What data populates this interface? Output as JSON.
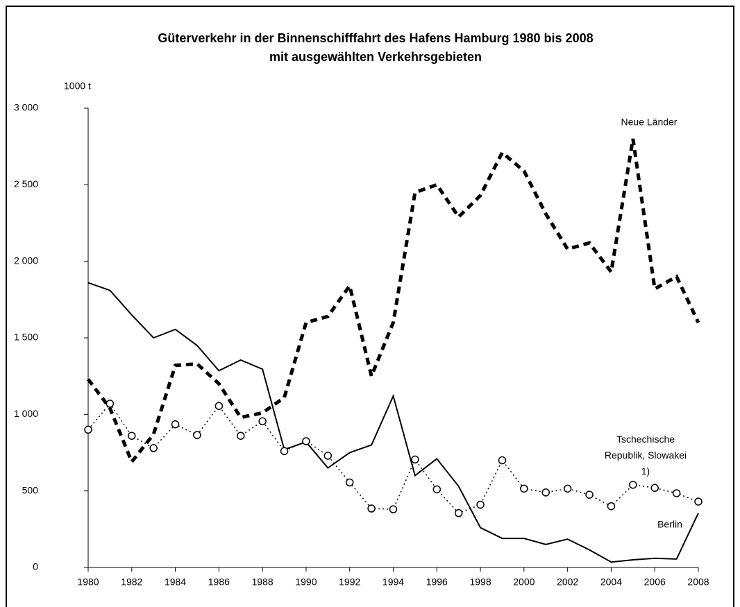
{
  "chart_data": {
    "type": "line",
    "title": "Güterverkehr in der Binnenschifffahrt des Hafens Hamburg 1980 bis 2008",
    "subtitle": "mit ausgewählten Verkehrsgebieten",
    "y_label": "1000 t",
    "x": [
      1980,
      1981,
      1982,
      1983,
      1984,
      1985,
      1986,
      1987,
      1988,
      1989,
      1990,
      1991,
      1992,
      1993,
      1994,
      1995,
      1996,
      1997,
      1998,
      1999,
      2000,
      2001,
      2002,
      2003,
      2004,
      2005,
      2006,
      2007,
      2008
    ],
    "xlim": [
      1980,
      2008
    ],
    "xticks": [
      1980,
      1982,
      1984,
      1986,
      1988,
      1990,
      1992,
      1994,
      1996,
      1998,
      2000,
      2002,
      2004,
      2006,
      2008
    ],
    "ylim": [
      0,
      3000
    ],
    "yticks": [
      0,
      500,
      {
        "value": 1000,
        "label": "1 000"
      },
      {
        "value": 1500,
        "label": "1 500"
      },
      {
        "value": 2000,
        "label": "2 000"
      },
      {
        "value": 2500,
        "label": "2 500"
      },
      {
        "value": 3000,
        "label": "3 000"
      }
    ],
    "series": [
      {
        "name": "Berlin",
        "color": "#000000",
        "line_style": "solid",
        "values": [
          1860,
          1810,
          1650,
          1500,
          1555,
          1450,
          1285,
          1355,
          1295,
          770,
          820,
          650,
          750,
          800,
          1120,
          600,
          710,
          530,
          260,
          190,
          190,
          150,
          185,
          115,
          35,
          50,
          60,
          55,
          355
        ]
      },
      {
        "name": "Neue Länder",
        "color": "#000000",
        "line_style": "dashed",
        "values": [
          1230,
          1040,
          690,
          870,
          1320,
          1330,
          1200,
          980,
          1010,
          1110,
          1600,
          1640,
          1840,
          1250,
          1600,
          2450,
          2500,
          2290,
          2430,
          2710,
          2590,
          2310,
          2080,
          2120,
          1930,
          2800,
          1820,
          1900,
          1600
        ]
      },
      {
        "name": "Tschechische Republik, Slowakei 1)",
        "color": "#000000",
        "line_style": "dotted",
        "marker": "circle",
        "values": [
          900,
          1070,
          860,
          780,
          935,
          865,
          1055,
          860,
          955,
          760,
          825,
          730,
          555,
          385,
          380,
          705,
          510,
          355,
          410,
          700,
          515,
          490,
          515,
          475,
          400,
          540,
          520,
          485,
          430
        ]
      }
    ]
  }
}
